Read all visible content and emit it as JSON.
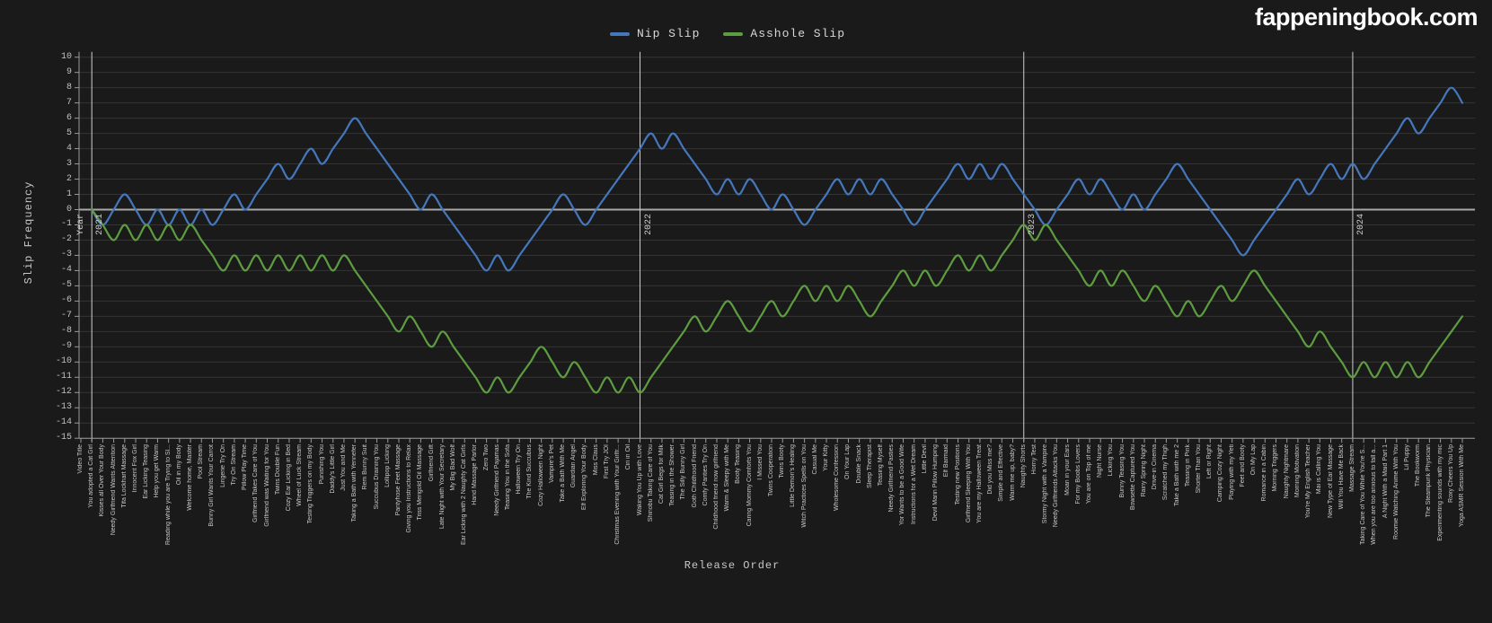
{
  "page": {
    "background": "#1a1a1a"
  },
  "logo": {
    "text": "fappeningbook.com"
  },
  "chart_data": {
    "type": "line",
    "title": "",
    "xlabel": "Release Order",
    "ylabel": "Slip Frequency",
    "ylim": [
      -15,
      10
    ],
    "grid": true,
    "legend_position": "top-center",
    "y_ticks": [
      10,
      9,
      8,
      7,
      6,
      5,
      4,
      3,
      2,
      1,
      0,
      -1,
      -2,
      -3,
      -4,
      -5,
      -6,
      -7,
      -8,
      -9,
      -10,
      -11,
      -12,
      -13,
      -14,
      -15
    ],
    "year_markers": [
      {
        "prefix": "Year",
        "year": "2021",
        "category_index": 1
      },
      {
        "prefix": "",
        "year": "2022",
        "category_index": 51
      },
      {
        "prefix": "",
        "year": "2023",
        "category_index": 86
      },
      {
        "prefix": "",
        "year": "2024",
        "category_index": 116
      }
    ],
    "categories": [
      "Video Title",
      "You adopted a Cat Girl",
      "Kisses all Over Your Body",
      "Needy Girlfriend Wants Attention",
      "Tifa Lockhart Massage",
      "Innocent Fox Girl",
      "Ear Licking Teasing",
      "Help you get Warm",
      "Reading while you are Trying to Sl...",
      "Oil in my Body",
      "Welcome home, Master",
      "Pool Stream",
      "Bunny Girl Wants Your Carrot",
      "Lingerie Try On",
      "Try On Stream",
      "Pillow Play Time",
      "Girlfriend Takes Care of You",
      "Girlfriend was Waiting for You",
      "Twins Double Fun",
      "Cozy Ear Licking in Bed",
      "Wheel of Luck Stream",
      "Testing Triggers on my Body",
      "Punishing You",
      "Daddy's Little Girl",
      "Just You and Me",
      "Taking a Bath with Yennefer",
      "Rem Bunny Suit",
      "Succubus Draining You",
      "Lollipop Licking",
      "Pantyhose Feet Massage",
      "Giving you Instructions to Relax",
      "Triss Merigold Oil Massage",
      "Girlfriend Gift",
      "Late Night with Your Secretary",
      "My Big Bad Wolf",
      "Ear Licking with 2 Naughty Cat Girls",
      "Hand Massage Parlor",
      "Zero Two",
      "Needy Girlfriend Pajamas",
      "Teasing You in the Sofa",
      "Halloween Try On",
      "The Kind Succubus",
      "Cozy Halloween Night",
      "Vampire's Pet",
      "Take a Bath With Me",
      "Guardian Angel",
      "Elf Exploring Your Body",
      "Miss Claus",
      "First Try JOI",
      "Christmas Evening with Your Girlfr...",
      "Ciri in Oil",
      "Waking You Up with Love",
      "Shinobu Taking Care of You",
      "Cat Girl Begs for Milk",
      "Teasing in the Shower",
      "The Silly Bunny Girl",
      "Goth Childhood Friend",
      "Comfy Panties Try On",
      "Childhood friend now girlfriend",
      "Warm & Sleepy with Me",
      "Booty Teasing",
      "Caring Mommy Comforts You",
      "I Missed You",
      "Twins Cooperation",
      "Twins Booty",
      "Little Demon's Healing",
      "Witch Practices Spells on You",
      "Casual Me",
      "Your Kitty",
      "Wholesome Confession",
      "On Your Lap",
      "Double Snack",
      "Sleep Therapist",
      "Teasing Myself",
      "Needy Girlfriend Pasties",
      "Yor Wants to be a Good Wife",
      "Instructions for a Wet Dream",
      "Little Devil",
      "Devil Marin Pillow Humping",
      "Elf Barmaid",
      "Testing new Positions",
      "Girlfriend Sleeping With You",
      "You are my Halloween Treat",
      "Did you Miss me?",
      "Simple and Effective",
      "Warm me up, baby?",
      "Naughty Shorts",
      "Horny Test",
      "Stormy Night with a Vampire",
      "Needy Girlfriends Attacks You",
      "Moan in your Ears",
      "For my Boobs Lovers",
      "You are on Top of me",
      "Night Nurse",
      "Licking You",
      "Bunny Teasing You",
      "Bowsette Captured You",
      "Rainy Spring Night",
      "Drive-in Cinema",
      "Scratched my Thigh",
      "Take a Bath with me 2",
      "Teasing in Pink",
      "Shorter Than You",
      "Left or Right",
      "Camping Cozy Night",
      "Playing with my Yeti",
      "Feet and Booty",
      "On My Lap",
      "Romance in a Cabin",
      "Morning Triggers",
      "Naughty Nightmare",
      "Morning Motivation",
      "You're My English Teacher",
      "Mai is Calling You",
      "New Type of Ear Massage",
      "Will You Have Me Back",
      "Massage Stream",
      "Taking Care of You While You're S...",
      "When you are too anxious to fall a...",
      "A Night With a Maid Part 1",
      "Roomie Watching Anime With You",
      "Lil Puppy",
      "The Bookworm",
      "The Steampunk Physician",
      "Experimenting sounds with my mic",
      "Roxy Cheers You Up",
      "Yoga ASMR Session With Me"
    ],
    "series": [
      {
        "name": "Nip Slip",
        "color": "#4577bd",
        "values": [
          null,
          0,
          -1,
          0,
          1,
          0,
          -1,
          0,
          -1,
          0,
          -1,
          0,
          -1,
          0,
          1,
          0,
          1,
          2,
          3,
          2,
          3,
          4,
          3,
          4,
          5,
          6,
          5,
          4,
          3,
          2,
          1,
          0,
          1,
          0,
          -1,
          -2,
          -3,
          -4,
          -3,
          -4,
          -3,
          -2,
          -1,
          0,
          1,
          0,
          -1,
          0,
          1,
          2,
          3,
          4,
          5,
          4,
          5,
          4,
          3,
          2,
          1,
          2,
          1,
          2,
          1,
          0,
          1,
          0,
          -1,
          0,
          1,
          2,
          1,
          2,
          1,
          2,
          1,
          0,
          -1,
          0,
          1,
          2,
          3,
          2,
          3,
          2,
          3,
          2,
          1,
          0,
          -1,
          0,
          1,
          2,
          1,
          2,
          1,
          0,
          1,
          0,
          1,
          2,
          3,
          2,
          1,
          0,
          -1,
          -2,
          -3,
          -2,
          -1,
          0,
          1,
          2,
          1,
          2,
          3,
          2,
          3,
          2,
          3,
          4,
          5,
          6,
          5,
          6,
          7,
          8,
          7
        ]
      },
      {
        "name": "Asshole Slip",
        "color": "#5e9c40",
        "values": [
          null,
          0,
          -1,
          -2,
          -1,
          -2,
          -1,
          -2,
          -1,
          -2,
          -1,
          -2,
          -3,
          -4,
          -3,
          -4,
          -3,
          -4,
          -3,
          -4,
          -3,
          -4,
          -3,
          -4,
          -3,
          -4,
          -5,
          -6,
          -7,
          -8,
          -7,
          -8,
          -9,
          -8,
          -9,
          -10,
          -11,
          -12,
          -11,
          -12,
          -11,
          -10,
          -9,
          -10,
          -11,
          -10,
          -11,
          -12,
          -11,
          -12,
          -11,
          -12,
          -11,
          -10,
          -9,
          -8,
          -7,
          -8,
          -7,
          -6,
          -7,
          -8,
          -7,
          -6,
          -7,
          -6,
          -5,
          -6,
          -5,
          -6,
          -5,
          -6,
          -7,
          -6,
          -5,
          -4,
          -5,
          -4,
          -5,
          -4,
          -3,
          -4,
          -3,
          -4,
          -3,
          -2,
          -1,
          -2,
          -1,
          -2,
          -3,
          -4,
          -5,
          -4,
          -5,
          -4,
          -5,
          -6,
          -5,
          -6,
          -7,
          -6,
          -7,
          -6,
          -5,
          -6,
          -5,
          -4,
          -5,
          -6,
          -7,
          -8,
          -9,
          -8,
          -9,
          -10,
          -11,
          -10,
          -11,
          -10,
          -11,
          -10,
          -11,
          -10,
          -9,
          -8,
          -7
        ]
      }
    ],
    "colors": {
      "background": "#1a1a1a",
      "gridline": "#343434",
      "zero_line": "#a8a8a8",
      "year_line": "#cfcfcf",
      "axis": "#9a9a9a",
      "tick_text": "#c6c6c6"
    }
  }
}
